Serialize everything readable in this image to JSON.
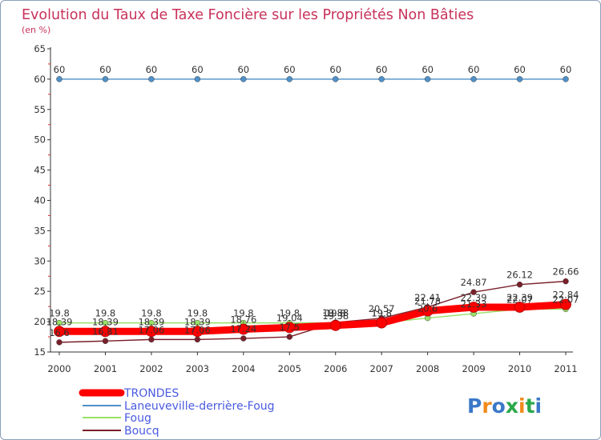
{
  "chart_data": {
    "type": "line",
    "title": "Evolution du Taux de Taxe Foncière sur les Propriétés Non Bâties",
    "ylabel": "(en %)",
    "xlabel": "",
    "ylim": [
      15,
      65
    ],
    "yticks": [
      15,
      20,
      25,
      30,
      35,
      40,
      45,
      50,
      55,
      60,
      65
    ],
    "categories": [
      "2000",
      "2001",
      "2002",
      "2003",
      "2004",
      "2005",
      "2006",
      "2007",
      "2008",
      "2009",
      "2010",
      "2011"
    ],
    "series": [
      {
        "name": "TRONDES",
        "color": "#ff0000",
        "values": [
          18.39,
          18.39,
          18.39,
          18.39,
          18.76,
          19.04,
          19.38,
          19.8,
          21.78,
          22.39,
          22.39,
          22.84
        ],
        "labels": [
          "18.39",
          "18.39",
          "18.39",
          "18.39",
          "18.76",
          "19.04",
          "19.38",
          "19.8",
          "21.78",
          "22.39",
          "22.39",
          "22.84"
        ]
      },
      {
        "name": "Laneuveville-derrière-Foug",
        "color": "#4f90c8",
        "values": [
          60,
          60,
          60,
          60,
          60,
          60,
          60,
          60,
          60,
          60,
          60,
          60
        ],
        "labels": [
          "60",
          "60",
          "60",
          "60",
          "60",
          "60",
          "60",
          "60",
          "60",
          "60",
          "60",
          "60"
        ]
      },
      {
        "name": "Foug",
        "color": "#99e066",
        "values": [
          19.8,
          19.8,
          19.8,
          19.8,
          19.8,
          19.8,
          19.8,
          19.8,
          20.6,
          21.33,
          22.07,
          22.07
        ],
        "labels": [
          "19.8",
          "19.8",
          "19.8",
          "19.8",
          "19.8",
          "19.8",
          "19.8",
          "19.8",
          "20.6",
          "21.33",
          "22.07",
          "22.07"
        ]
      },
      {
        "name": "Boucq",
        "color": "#7a1f2a",
        "values": [
          16.6,
          16.81,
          17.06,
          17.06,
          17.24,
          17.5,
          19.88,
          20.57,
          22.41,
          24.87,
          26.12,
          26.66
        ],
        "labels": [
          "16.6",
          "16.81",
          "17.06",
          "17.06",
          "17.24",
          "17.5",
          "19.88",
          "20.57",
          "22.41",
          "24.87",
          "26.12",
          "26.66"
        ]
      }
    ],
    "legend_position": "bottom-left",
    "grid": false
  },
  "branding": {
    "logo_text": "Proxiti",
    "logo_colors": [
      "#3a78c8",
      "#f08a1c",
      "#3a78c8",
      "#2aa84a",
      "#f08a1c",
      "#2aa84a",
      "#3a78c8"
    ]
  }
}
